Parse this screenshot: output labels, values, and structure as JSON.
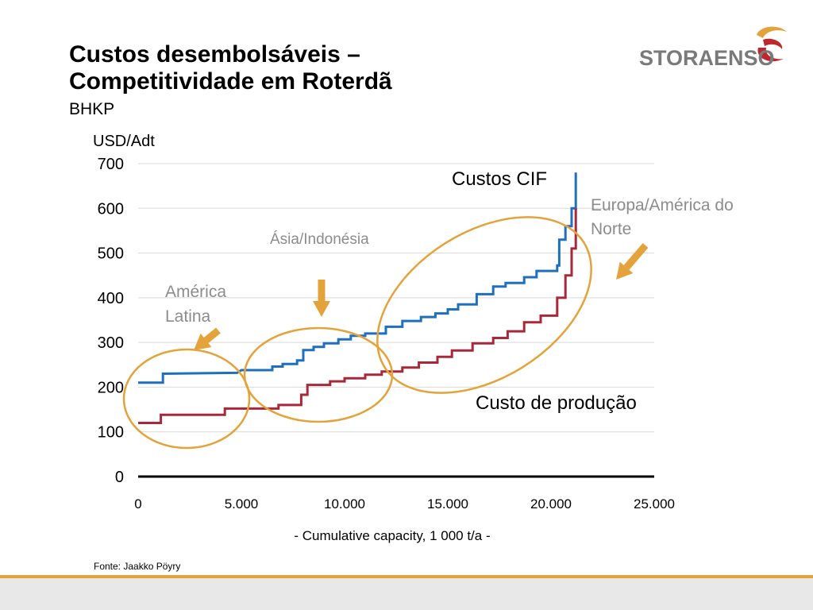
{
  "slide": {
    "title_line1": "Custos desembolsáveis –",
    "title_line2": "Competitividade em Roterdã",
    "subtitle": "BHKP",
    "source": "Fonte: Jaakko Pöyry"
  },
  "logo": {
    "text": "STORAENSO",
    "icon": "storaenso-swirl-icon",
    "colors": [
      "#e3a33a",
      "#c0272d"
    ]
  },
  "chart_data": {
    "type": "line",
    "step": true,
    "ylabel": "USD/Adt",
    "xlabel": "- Cumulative capacity, 1 000 t/a -",
    "xlim": [
      0,
      25000
    ],
    "ylim": [
      0,
      700
    ],
    "x_ticks": [
      "0",
      "5.000",
      "10.000",
      "15.000",
      "20.000",
      "25.000"
    ],
    "y_ticks": [
      "0",
      "100",
      "200",
      "300",
      "400",
      "500",
      "600",
      "700"
    ],
    "grid": true,
    "series": [
      {
        "name": "Custos CIF",
        "color": "#1f6fbf",
        "x": [
          0,
          1200,
          1200,
          4800,
          5000,
          6500,
          6500,
          7000,
          7000,
          7700,
          7700,
          8000,
          8000,
          8500,
          8500,
          9000,
          9000,
          9700,
          9700,
          10300,
          10300,
          11000,
          11000,
          12000,
          12000,
          12800,
          12800,
          13700,
          13700,
          14400,
          14400,
          15000,
          15000,
          15500,
          15500,
          16400,
          16400,
          17200,
          17200,
          17800,
          17800,
          18700,
          18700,
          19300,
          19300,
          20300,
          20300,
          20400,
          20400,
          20700,
          20700,
          21000,
          21000,
          21200,
          21200
        ],
        "y": [
          210,
          210,
          230,
          232,
          238,
          238,
          246,
          246,
          252,
          252,
          260,
          260,
          283,
          283,
          290,
          290,
          298,
          298,
          307,
          307,
          315,
          315,
          320,
          320,
          335,
          335,
          348,
          348,
          357,
          357,
          365,
          365,
          374,
          374,
          385,
          385,
          408,
          408,
          425,
          425,
          433,
          433,
          446,
          446,
          460,
          460,
          472,
          472,
          530,
          530,
          560,
          560,
          600,
          600,
          680
        ]
      },
      {
        "name": "Custo de produção",
        "color": "#a8283a",
        "x": [
          0,
          1100,
          1100,
          4200,
          4200,
          6800,
          6800,
          7900,
          7900,
          8200,
          8200,
          9300,
          9300,
          10000,
          10000,
          11000,
          11000,
          11800,
          11800,
          12800,
          12800,
          13600,
          13600,
          14500,
          14500,
          15200,
          15200,
          16200,
          16200,
          17200,
          17200,
          17900,
          17900,
          18700,
          18700,
          19500,
          19500,
          20300,
          20300,
          20700,
          20700,
          21000,
          21000,
          21200,
          21200
        ],
        "y": [
          120,
          120,
          138,
          138,
          152,
          152,
          160,
          160,
          183,
          183,
          205,
          205,
          213,
          213,
          220,
          220,
          228,
          228,
          235,
          235,
          244,
          244,
          255,
          255,
          268,
          268,
          282,
          282,
          298,
          298,
          310,
          310,
          325,
          325,
          345,
          345,
          360,
          360,
          400,
          400,
          450,
          450,
          510,
          510,
          600
        ]
      }
    ],
    "annotations": [
      {
        "text": "Custos CIF",
        "style": "dark"
      },
      {
        "text": "Custo de produção",
        "style": "dark"
      },
      {
        "text": "América Latina",
        "line1": "América",
        "line2": "Latina",
        "style": "grey"
      },
      {
        "text": "Ásia/Indonésia",
        "style": "grey"
      },
      {
        "text": "Europa/América do Norte",
        "line1": "Europa/América do",
        "line2": "Norte",
        "style": "grey"
      }
    ],
    "highlight_color": "#e3a33a",
    "annotation_grey": "#8c8c8c"
  }
}
